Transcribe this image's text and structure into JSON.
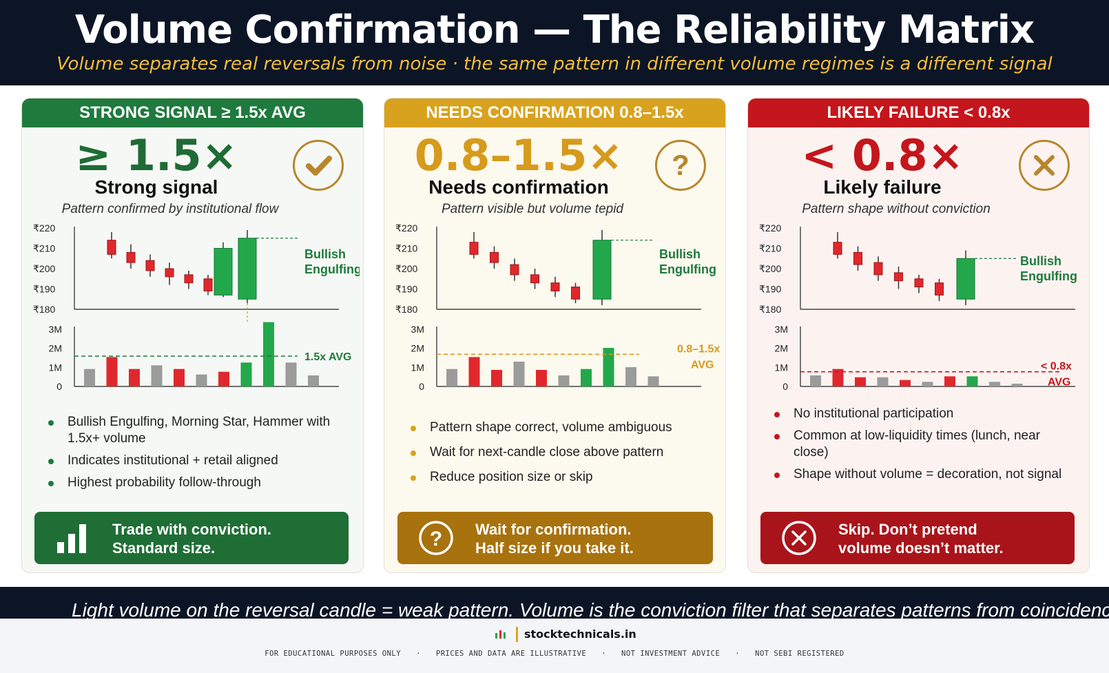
{
  "header": {
    "title": "Volume Confirmation — The Reliability Matrix",
    "subtitle": "Volume separates real reversals from noise · the same pattern in different volume regimes is a different signal"
  },
  "colors": {
    "green": "#1f7a3d",
    "gold": "#d9a21e",
    "red": "#c4161c",
    "candle_red": "#e0282c",
    "candle_green": "#22a84a",
    "volume_gray": "#9b9b9b",
    "navy": "#0c1526"
  },
  "cards": [
    {
      "band": "STRONG SIGNAL  ≥ 1.5x AVG",
      "big": "≥ 1.5×",
      "label": "Strong signal",
      "desc": "Pattern confirmed by institutional flow",
      "icon": "check-icon",
      "bullets": [
        "Bullish Engulfing, Morning Star, Hammer with 1.5x+ volume",
        "Indicates institutional + retail aligned",
        "Highest probability follow-through"
      ],
      "action_icon": "bar-chart-icon",
      "action_line1": "Trade with conviction.",
      "action_line2": "Standard size.",
      "pattern_label_1": "Bullish",
      "pattern_label_2": "Engulfing",
      "avg_label_1": "1.5x AVG",
      "avg_label_2": ""
    },
    {
      "band": "NEEDS CONFIRMATION  0.8–1.5x",
      "big": "0.8–1.5×",
      "label": "Needs confirmation",
      "desc": "Pattern visible but volume tepid",
      "icon": "question-icon",
      "bullets": [
        "Pattern shape correct, volume ambiguous",
        "Wait for next-candle close above pattern",
        "Reduce position size or skip"
      ],
      "action_icon": "question-icon",
      "action_line1": "Wait for confirmation.",
      "action_line2": "Half size if you take it.",
      "pattern_label_1": "Bullish",
      "pattern_label_2": "Engulfing",
      "avg_label_1": "0.8–1.5x",
      "avg_label_2": "AVG"
    },
    {
      "band": "LIKELY FAILURE  < 0.8x",
      "big": "< 0.8×",
      "label": "Likely failure",
      "desc": "Pattern shape without conviction",
      "icon": "x-icon",
      "bullets": [
        "No institutional participation",
        "Common at low-liquidity times (lunch, near close)",
        "Shape without volume = decoration, not signal"
      ],
      "action_icon": "x-circle-icon",
      "action_line1": "Skip. Don’t pretend",
      "action_line2": "volume doesn’t matter.",
      "pattern_label_1": "Bullish",
      "pattern_label_2": "Engulfing",
      "avg_label_1": "< 0.8x",
      "avg_label_2": "AVG"
    }
  ],
  "chart_data": [
    {
      "type": "candlestick",
      "price_ticks": [
        "₹220",
        "₹210",
        "₹200",
        "₹190",
        "₹180"
      ],
      "price_range": [
        180,
        220
      ],
      "volume_ticks": [
        "3M",
        "2M",
        "1M",
        "0"
      ],
      "volume_range": [
        0,
        3
      ],
      "candles": [
        {
          "open": 214,
          "close": 207,
          "high": 218,
          "low": 205
        },
        {
          "open": 208,
          "close": 203,
          "high": 212,
          "low": 200
        },
        {
          "open": 204,
          "close": 199,
          "high": 207,
          "low": 196
        },
        {
          "open": 200,
          "close": 196,
          "high": 203,
          "low": 192
        },
        {
          "open": 197,
          "close": 193,
          "high": 199,
          "low": 190
        },
        {
          "open": 195,
          "close": 189,
          "high": 197,
          "low": 187
        },
        {
          "open": 187,
          "close": 210,
          "high": 213,
          "low": 186
        },
        {
          "open": 185,
          "close": 215,
          "high": 219,
          "low": 183
        }
      ],
      "resistance": 215,
      "volume": [
        {
          "v": 0.95,
          "c": "gray"
        },
        {
          "v": 1.6,
          "c": "red"
        },
        {
          "v": 0.95,
          "c": "red"
        },
        {
          "v": 1.15,
          "c": "gray"
        },
        {
          "v": 0.95,
          "c": "red"
        },
        {
          "v": 0.65,
          "c": "gray"
        },
        {
          "v": 0.8,
          "c": "red"
        },
        {
          "v": 1.3,
          "c": "green"
        },
        {
          "v": 3.5,
          "c": "green"
        },
        {
          "v": 1.3,
          "c": "gray"
        },
        {
          "v": 0.6,
          "c": "gray"
        }
      ],
      "avg_line": 1.65
    },
    {
      "type": "candlestick",
      "price_ticks": [
        "₹220",
        "₹210",
        "₹200",
        "₹190",
        "₹180"
      ],
      "price_range": [
        180,
        220
      ],
      "volume_ticks": [
        "3M",
        "2M",
        "1M",
        "0"
      ],
      "volume_range": [
        0,
        3
      ],
      "candles": [
        {
          "open": 213,
          "close": 207,
          "high": 218,
          "low": 205
        },
        {
          "open": 208,
          "close": 203,
          "high": 211,
          "low": 200
        },
        {
          "open": 202,
          "close": 197,
          "high": 205,
          "low": 194
        },
        {
          "open": 197,
          "close": 193,
          "high": 200,
          "low": 190
        },
        {
          "open": 193,
          "close": 189,
          "high": 196,
          "low": 186
        },
        {
          "open": 191,
          "close": 185,
          "high": 193,
          "low": 183
        },
        {
          "open": 185,
          "close": 214,
          "high": 219,
          "low": 182
        }
      ],
      "resistance": 214,
      "volume": [
        {
          "v": 0.95,
          "c": "gray"
        },
        {
          "v": 1.6,
          "c": "red"
        },
        {
          "v": 0.9,
          "c": "red"
        },
        {
          "v": 1.35,
          "c": "gray"
        },
        {
          "v": 0.9,
          "c": "red"
        },
        {
          "v": 0.6,
          "c": "gray"
        },
        {
          "v": 0.95,
          "c": "green"
        },
        {
          "v": 2.1,
          "c": "green"
        },
        {
          "v": 1.05,
          "c": "gray"
        },
        {
          "v": 0.55,
          "c": "gray"
        }
      ],
      "avg_line": 1.75
    },
    {
      "type": "candlestick",
      "price_ticks": [
        "₹220",
        "₹210",
        "₹200",
        "₹190",
        "₹180"
      ],
      "price_range": [
        180,
        220
      ],
      "volume_ticks": [
        "3M",
        "2M",
        "1M",
        "0"
      ],
      "volume_range": [
        0,
        3
      ],
      "candles": [
        {
          "open": 213,
          "close": 207,
          "high": 218,
          "low": 205
        },
        {
          "open": 208,
          "close": 202,
          "high": 211,
          "low": 199
        },
        {
          "open": 203,
          "close": 197,
          "high": 206,
          "low": 194
        },
        {
          "open": 198,
          "close": 194,
          "high": 201,
          "low": 190
        },
        {
          "open": 195,
          "close": 191,
          "high": 197,
          "low": 188
        },
        {
          "open": 193,
          "close": 187,
          "high": 195,
          "low": 184
        },
        {
          "open": 185,
          "close": 205,
          "high": 209,
          "low": 182
        }
      ],
      "resistance": 205,
      "volume": [
        {
          "v": 0.6,
          "c": "gray"
        },
        {
          "v": 0.95,
          "c": "red"
        },
        {
          "v": 0.5,
          "c": "red"
        },
        {
          "v": 0.5,
          "c": "gray"
        },
        {
          "v": 0.35,
          "c": "red"
        },
        {
          "v": 0.25,
          "c": "gray"
        },
        {
          "v": 0.55,
          "c": "red"
        },
        {
          "v": 0.55,
          "c": "green"
        },
        {
          "v": 0.25,
          "c": "gray"
        },
        {
          "v": 0.15,
          "c": "gray"
        }
      ],
      "avg_line": 0.8
    }
  ],
  "footer": {
    "tagline": "Light volume on the reversal candle = weak pattern. Volume is the conviction filter that separates patterns from coincidence.",
    "brand": "stocktechnicals.in",
    "disclaimers": [
      "FOR EDUCATIONAL PURPOSES ONLY",
      "PRICES AND DATA ARE ILLUSTRATIVE",
      "NOT INVESTMENT ADVICE",
      "NOT SEBI REGISTERED"
    ]
  }
}
